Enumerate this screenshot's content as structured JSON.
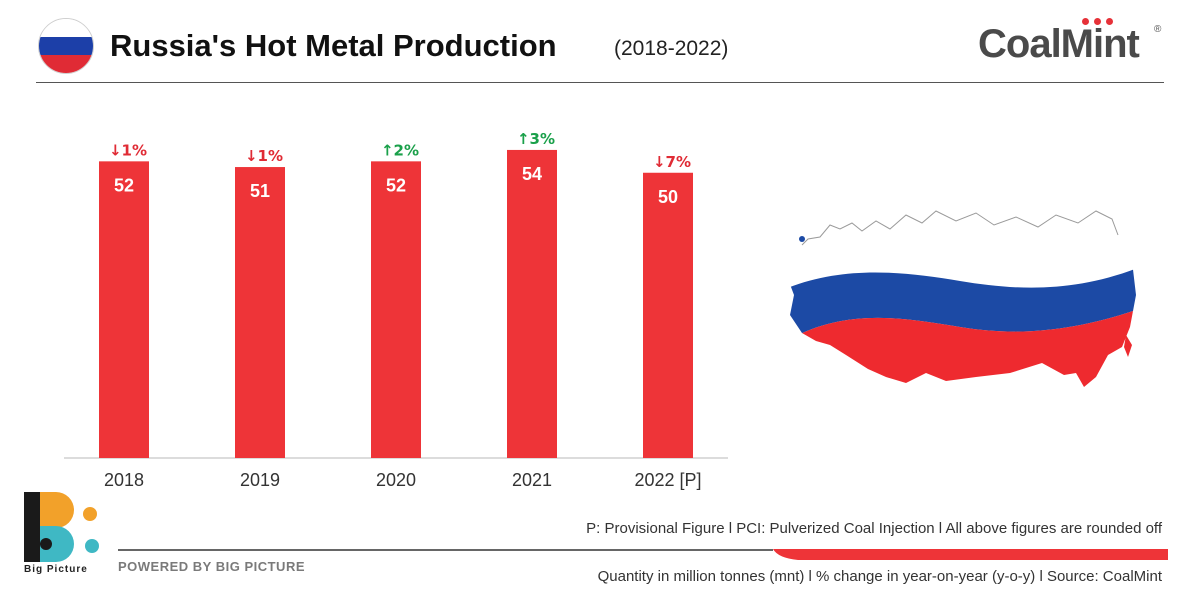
{
  "header": {
    "title": "Russia's Hot Metal Production",
    "subtitle": "(2018-2022)",
    "brand": "CoalMint",
    "brand_mark": "®",
    "flag_colors": [
      "#ffffff",
      "#1c3fa8",
      "#e02b35"
    ]
  },
  "chart_data": {
    "type": "bar",
    "categories": [
      "2018",
      "2019",
      "2020",
      "2021",
      "2022 [P]"
    ],
    "values": [
      52,
      51,
      52,
      54,
      50
    ],
    "value_labels": [
      "52",
      "51",
      "52",
      "54",
      "50"
    ],
    "changes": [
      {
        "direction": "down",
        "label": "1%"
      },
      {
        "direction": "down",
        "label": "1%"
      },
      {
        "direction": "up",
        "label": "2%"
      },
      {
        "direction": "up",
        "label": "3%"
      },
      {
        "direction": "down",
        "label": "7%"
      }
    ],
    "ylim": [
      0,
      61
    ],
    "bar_color": "#ee3438",
    "up_color": "#1aa04a",
    "down_color": "#e02b35",
    "grid": false,
    "title": "",
    "xlabel": "",
    "ylabel": ""
  },
  "map": {
    "icon": "russia-flag-map-icon"
  },
  "footer": {
    "logo_caption": "Big Picture",
    "powered_by": "POWERED BY BIG PICTURE",
    "note_top": "P: Provisional Figure  l  PCI: Pulverized Coal Injection  l  All above figures are rounded off",
    "note_bottom": "Quantity in million tonnes (mnt)  l  % change in year-on-year (y-o-y)  l  Source: CoalMint"
  }
}
